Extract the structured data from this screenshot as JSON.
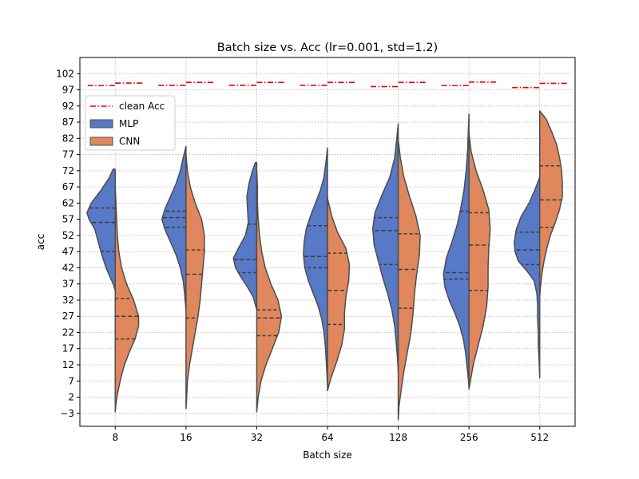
{
  "chart_data": {
    "type": "violin",
    "title": "Batch size vs. Acc (lr=0.001, std=1.2)",
    "xlabel": "Batch size",
    "ylabel": "acc",
    "categories": [
      "8",
      "16",
      "32",
      "64",
      "128",
      "256",
      "512"
    ],
    "yticks": [
      -3,
      2,
      7,
      12,
      17,
      22,
      27,
      32,
      37,
      42,
      47,
      52,
      57,
      62,
      67,
      72,
      77,
      82,
      87,
      92,
      97,
      102
    ],
    "ylim": [
      -7,
      107
    ],
    "grid": true,
    "legend": {
      "position": "upper-left",
      "entries": [
        {
          "label": "clean Acc",
          "kind": "line",
          "color": "#e8000b"
        },
        {
          "label": "MLP",
          "kind": "patch",
          "color": "#5779c6"
        },
        {
          "label": "CNN",
          "kind": "patch",
          "color": "#e0875d"
        }
      ]
    },
    "colors": {
      "MLP": "#5779c6",
      "CNN": "#e0875d",
      "clean": "#e8000b",
      "edge": "#4d4d4d"
    },
    "clean_acc": {
      "MLP": [
        98.3,
        98.4,
        98.4,
        98.4,
        98.0,
        98.3,
        97.7
      ],
      "CNN": [
        99.1,
        99.3,
        99.3,
        99.3,
        99.3,
        99.4,
        99.0
      ]
    },
    "series": [
      {
        "name": "MLP",
        "side": "left",
        "violins": [
          {
            "y": [
              72.5,
              70,
              66,
              62,
              59,
              57,
              54,
              50,
              46,
              42,
              39,
              37,
              35
            ],
            "w": [
              0.03,
              0.08,
              0.2,
              0.34,
              0.4,
              0.37,
              0.29,
              0.24,
              0.19,
              0.13,
              0.07,
              0.03,
              0.0
            ],
            "quartiles": [
              47,
              56,
              60.5
            ]
          },
          {
            "y": [
              79.5,
              76,
              72,
              68,
              64,
              60,
              57,
              54,
              50,
              46,
              42,
              38,
              34,
              29
            ],
            "w": [
              0.0,
              0.04,
              0.08,
              0.14,
              0.22,
              0.3,
              0.34,
              0.3,
              0.22,
              0.14,
              0.08,
              0.04,
              0.02,
              0.0
            ],
            "quartiles": [
              54.5,
              57.5,
              59.5
            ]
          },
          {
            "y": [
              74.5,
              72,
              68,
              64,
              60,
              56,
              52,
              48,
              45,
              42,
              39,
              36,
              33,
              29
            ],
            "w": [
              0.02,
              0.06,
              0.11,
              0.14,
              0.13,
              0.12,
              0.16,
              0.26,
              0.33,
              0.3,
              0.22,
              0.13,
              0.05,
              0.0
            ],
            "quartiles": [
              40.5,
              44.5,
              55.5
            ]
          },
          {
            "y": [
              79,
              75,
              70,
              66,
              62,
              58,
              54,
              50,
              46,
              42,
              38,
              34,
              30,
              26,
              22,
              18,
              14,
              10,
              5.5
            ],
            "w": [
              0.0,
              0.02,
              0.05,
              0.1,
              0.17,
              0.24,
              0.3,
              0.33,
              0.34,
              0.32,
              0.27,
              0.2,
              0.13,
              0.08,
              0.05,
              0.03,
              0.02,
              0.01,
              0.0
            ],
            "quartiles": [
              42,
              45.5,
              55
            ]
          },
          {
            "y": [
              86.5,
              82,
              76,
              70,
              64,
              59,
              54,
              49,
              44,
              39,
              34,
              29,
              24,
              19,
              14,
              10
            ],
            "w": [
              0.0,
              0.02,
              0.05,
              0.12,
              0.24,
              0.33,
              0.36,
              0.34,
              0.28,
              0.22,
              0.15,
              0.09,
              0.05,
              0.03,
              0.01,
              0.0
            ],
            "quartiles": [
              43,
              53.5,
              57.5
            ]
          },
          {
            "y": [
              89.5,
              84,
              78,
              72,
              66,
              60,
              55,
              50,
              45,
              40,
              36,
              32,
              28,
              24,
              20,
              16,
              12,
              8,
              5
            ],
            "w": [
              0.0,
              0.01,
              0.02,
              0.04,
              0.07,
              0.12,
              0.17,
              0.24,
              0.32,
              0.36,
              0.34,
              0.28,
              0.2,
              0.13,
              0.08,
              0.05,
              0.03,
              0.01,
              0.0
            ],
            "quartiles": [
              38.5,
              40.5,
              59.5
            ]
          },
          {
            "y": [
              70,
              66,
              62,
              58,
              54,
              50,
              47,
              44,
              41,
              38,
              34,
              30,
              26,
              22,
              18,
              14,
              8
            ],
            "w": [
              0.0,
              0.07,
              0.15,
              0.26,
              0.33,
              0.36,
              0.35,
              0.3,
              0.18,
              0.08,
              0.04,
              0.03,
              0.03,
              0.02,
              0.02,
              0.01,
              0.0
            ],
            "quartiles": [
              43,
              47.5,
              53
            ]
          }
        ]
      },
      {
        "name": "CNN",
        "side": "right",
        "violins": [
          {
            "y": [
              67,
              62,
              57,
              52,
              47,
              42,
              37,
              32,
              27,
              24,
              20,
              16,
              12,
              8,
              4,
              0,
              -2.5
            ],
            "w": [
              0.0,
              0.01,
              0.02,
              0.03,
              0.05,
              0.09,
              0.16,
              0.26,
              0.33,
              0.33,
              0.28,
              0.2,
              0.13,
              0.08,
              0.04,
              0.01,
              0.0
            ],
            "quartiles": [
              20,
              27,
              32.5
            ]
          },
          {
            "y": [
              77,
              72,
              67,
              62,
              57,
              52,
              47,
              42,
              37,
              32,
              27,
              22,
              17,
              12,
              7,
              2,
              -1.5
            ],
            "w": [
              0.0,
              0.02,
              0.06,
              0.13,
              0.22,
              0.26,
              0.26,
              0.24,
              0.22,
              0.2,
              0.17,
              0.13,
              0.09,
              0.05,
              0.02,
              0.01,
              0.0
            ],
            "quartiles": [
              26.5,
              40,
              47.5
            ]
          },
          {
            "y": [
              72,
              67,
              62,
              57,
              52,
              47,
              42,
              37,
              32,
              27,
              22,
              17,
              12,
              7,
              2,
              -2.5
            ],
            "w": [
              0.0,
              0.01,
              0.01,
              0.02,
              0.04,
              0.07,
              0.12,
              0.2,
              0.3,
              0.35,
              0.31,
              0.22,
              0.13,
              0.06,
              0.02,
              0.0
            ],
            "quartiles": [
              21,
              26.5,
              29
            ]
          },
          {
            "y": [
              63.5,
              58,
              53,
              48,
              43,
              38,
              33,
              28,
              23,
              18,
              13,
              8,
              4
            ],
            "w": [
              0.0,
              0.06,
              0.14,
              0.26,
              0.31,
              0.3,
              0.26,
              0.24,
              0.24,
              0.2,
              0.13,
              0.05,
              0.0
            ],
            "quartiles": [
              24.5,
              35,
              46.5
            ]
          },
          {
            "y": [
              81.5,
              76,
              70,
              64,
              58,
              52,
              46,
              40,
              34,
              28,
              22,
              16,
              10,
              4,
              -1,
              -5
            ],
            "w": [
              0.0,
              0.03,
              0.08,
              0.16,
              0.25,
              0.31,
              0.3,
              0.26,
              0.23,
              0.21,
              0.18,
              0.13,
              0.08,
              0.04,
              0.01,
              0.0
            ],
            "quartiles": [
              29.5,
              41.5,
              52.5
            ]
          },
          {
            "y": [
              83.5,
              78,
              72,
              66,
              60,
              54,
              48,
              42,
              36,
              30,
              24,
              18,
              12,
              7,
              4.5
            ],
            "w": [
              0.0,
              0.03,
              0.1,
              0.2,
              0.28,
              0.3,
              0.28,
              0.27,
              0.27,
              0.25,
              0.2,
              0.13,
              0.06,
              0.02,
              0.0
            ],
            "quartiles": [
              35,
              49,
              59
            ]
          },
          {
            "y": [
              90.5,
              88,
              84,
              80,
              76,
              72,
              68,
              64,
              60,
              56,
              52,
              48,
              44,
              40,
              36,
              33
            ],
            "w": [
              0.0,
              0.09,
              0.17,
              0.24,
              0.28,
              0.31,
              0.32,
              0.32,
              0.28,
              0.22,
              0.15,
              0.1,
              0.06,
              0.03,
              0.01,
              0.0
            ],
            "quartiles": [
              54.5,
              63,
              73.5
            ]
          }
        ]
      }
    ]
  }
}
